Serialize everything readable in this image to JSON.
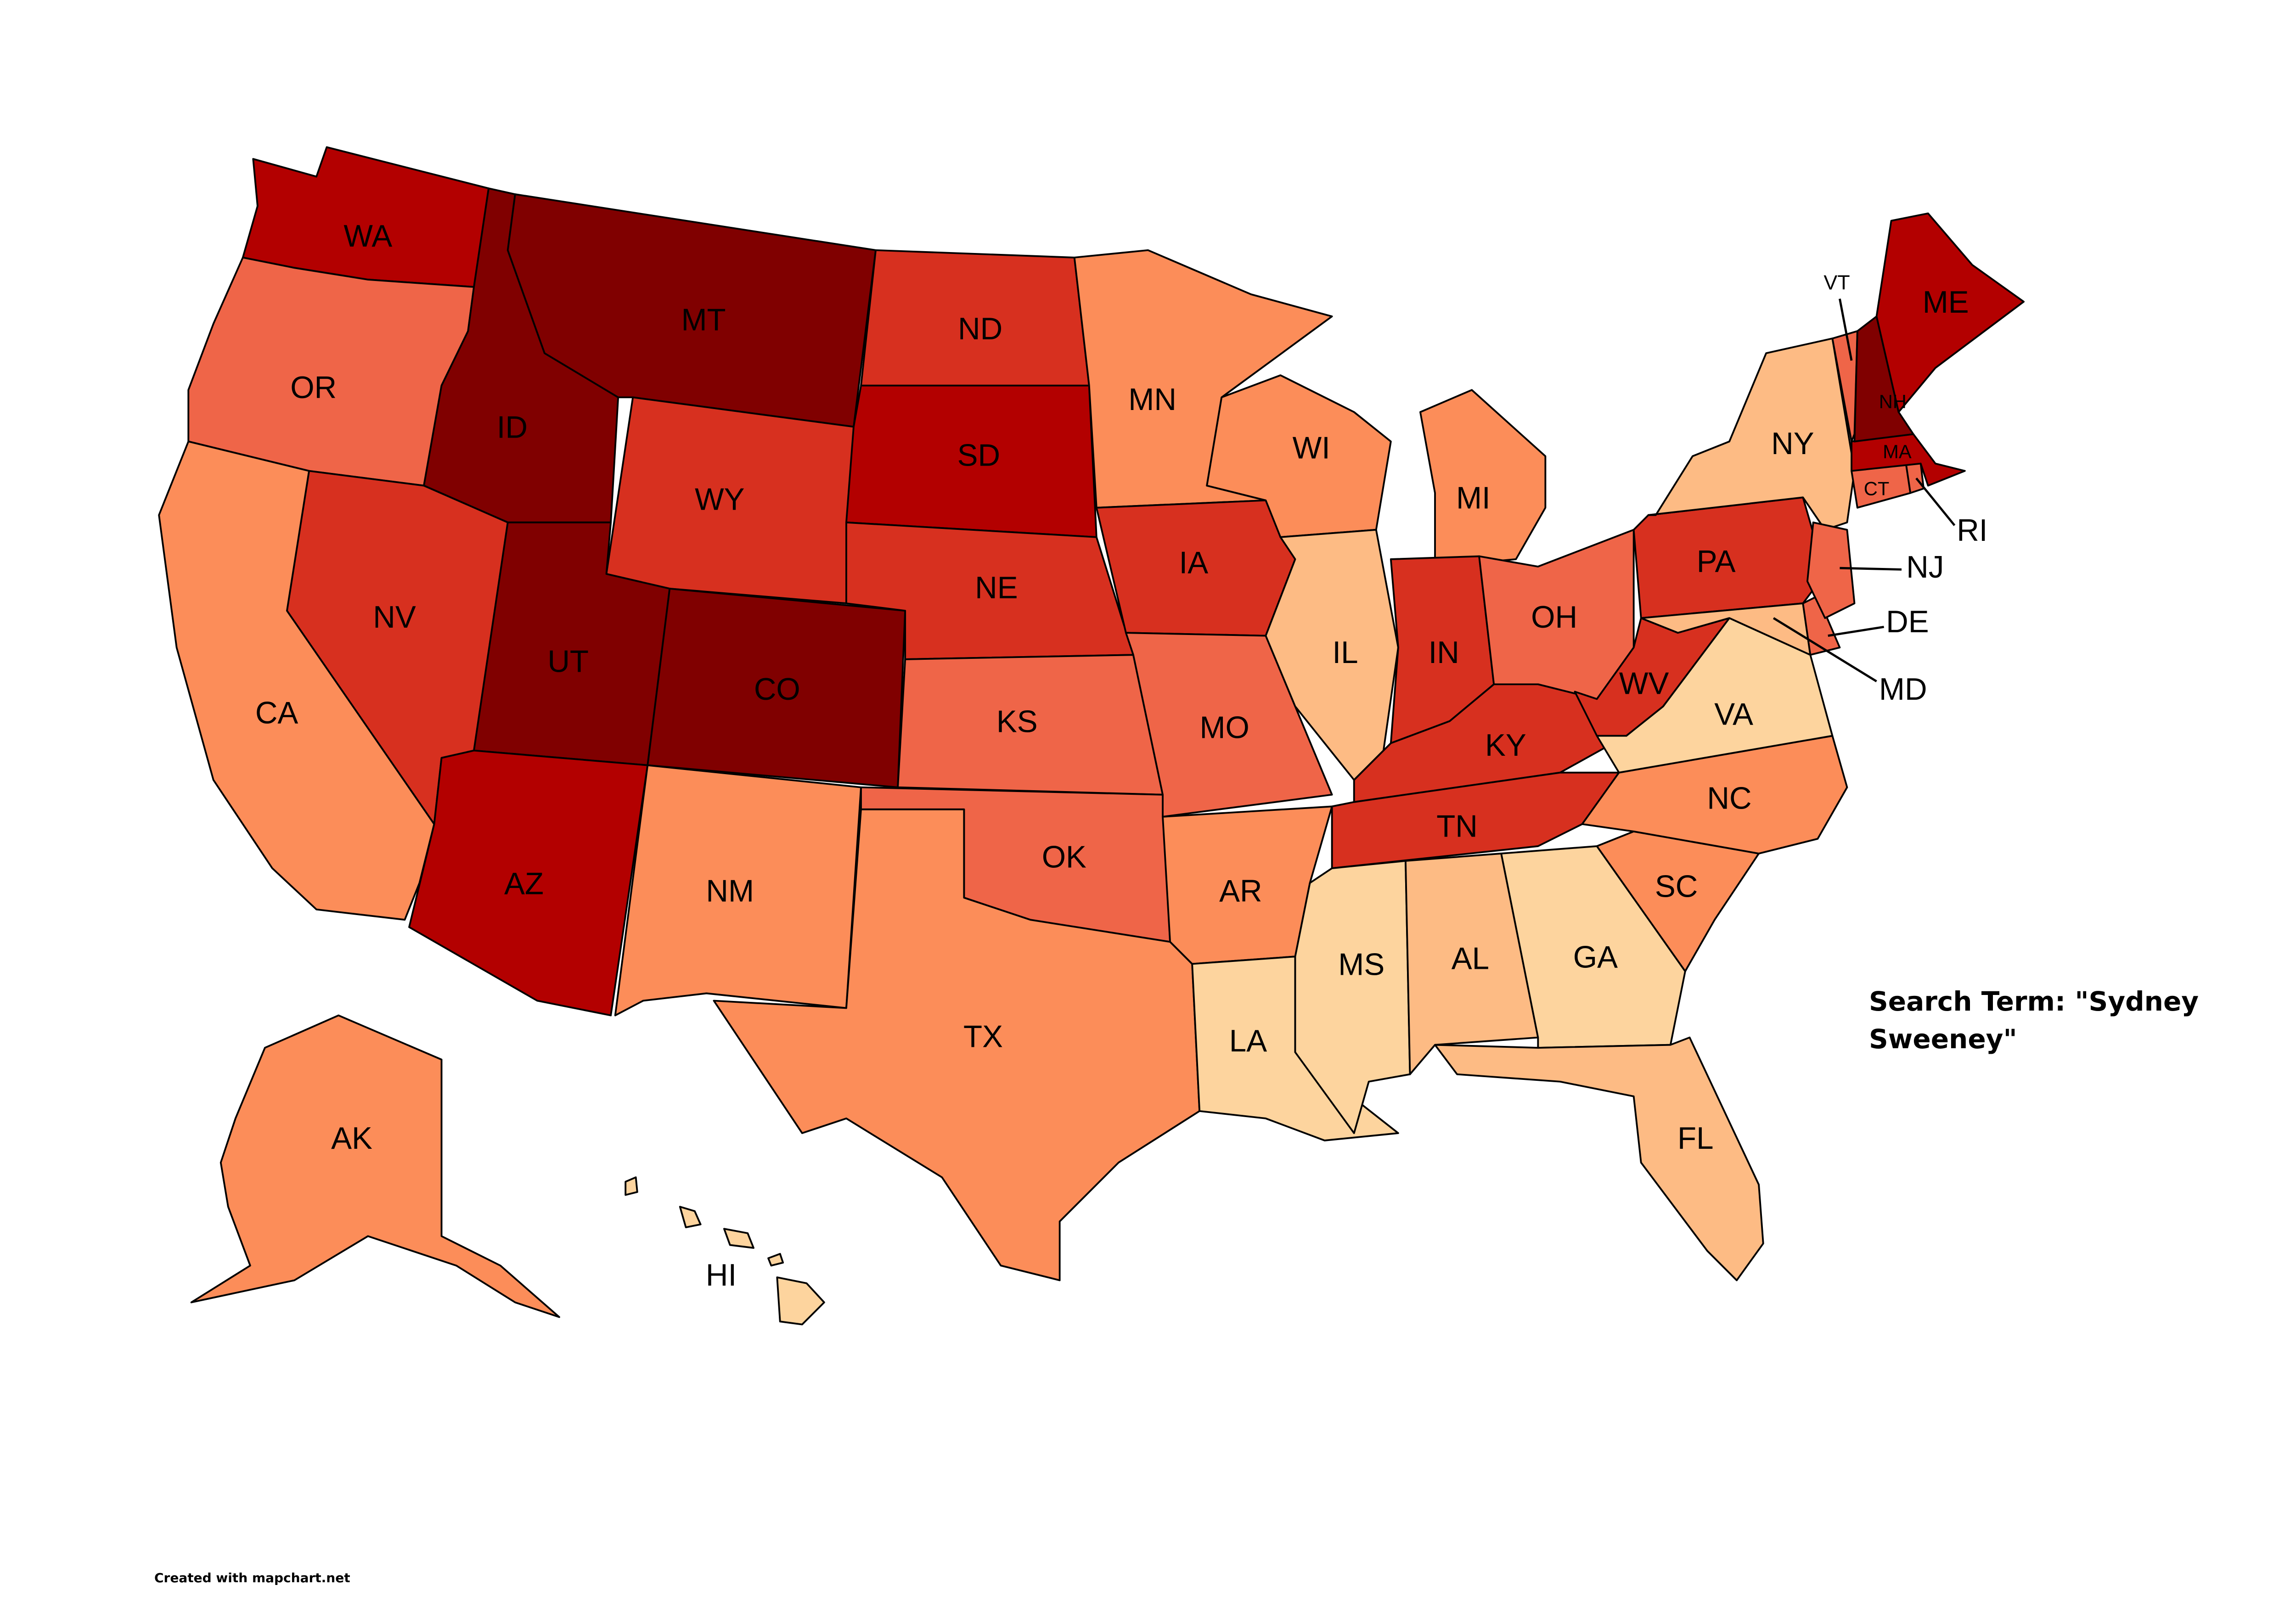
{
  "title": "Search Term: \"Sydney Sweeney\"",
  "credit": "Created with mapchart.net",
  "states": [
    {
      "label": "WA",
      "color": "#b30000"
    },
    {
      "label": "OR",
      "color": "#ef6548"
    },
    {
      "label": "CA",
      "color": "#fc8d59"
    },
    {
      "label": "ID",
      "color": "#800000"
    },
    {
      "label": "NV",
      "color": "#d7301f"
    },
    {
      "label": "MT",
      "color": "#800000"
    },
    {
      "label": "WY",
      "color": "#d7301f"
    },
    {
      "label": "UT",
      "color": "#800000"
    },
    {
      "label": "CO",
      "color": "#800000"
    },
    {
      "label": "AZ",
      "color": "#b30000"
    },
    {
      "label": "NM",
      "color": "#fc8d59"
    },
    {
      "label": "ND",
      "color": "#d7301f"
    },
    {
      "label": "SD",
      "color": "#b30000"
    },
    {
      "label": "NE",
      "color": "#d7301f"
    },
    {
      "label": "KS",
      "color": "#ef6548"
    },
    {
      "label": "OK",
      "color": "#ef6548"
    },
    {
      "label": "TX",
      "color": "#fc8d59"
    },
    {
      "label": "MN",
      "color": "#fc8d59"
    },
    {
      "label": "IA",
      "color": "#d7301f"
    },
    {
      "label": "MO",
      "color": "#ef6548"
    },
    {
      "label": "AR",
      "color": "#fc8d59"
    },
    {
      "label": "LA",
      "color": "#fdd49e"
    },
    {
      "label": "WI",
      "color": "#fc8d59"
    },
    {
      "label": "IL",
      "color": "#fdbb84"
    },
    {
      "label": "MI",
      "color": "#fc8d59"
    },
    {
      "label": "IN",
      "color": "#d7301f"
    },
    {
      "label": "OH",
      "color": "#ef6548"
    },
    {
      "label": "KY",
      "color": "#d7301f"
    },
    {
      "label": "TN",
      "color": "#d7301f"
    },
    {
      "label": "MS",
      "color": "#fdd49e"
    },
    {
      "label": "AL",
      "color": "#fdbb84"
    },
    {
      "label": "GA",
      "color": "#fdd49e"
    },
    {
      "label": "FL",
      "color": "#fdbb84"
    },
    {
      "label": "SC",
      "color": "#fc8d59"
    },
    {
      "label": "NC",
      "color": "#fc8d59"
    },
    {
      "label": "VA",
      "color": "#fdd49e"
    },
    {
      "label": "WV",
      "color": "#d7301f"
    },
    {
      "label": "PA",
      "color": "#d7301f"
    },
    {
      "label": "NY",
      "color": "#fdbb84"
    },
    {
      "label": "MD",
      "color": "#fdbb84"
    },
    {
      "label": "DE",
      "color": "#ef6548"
    },
    {
      "label": "NJ",
      "color": "#ef6548"
    },
    {
      "label": "CT",
      "color": "#ef6548"
    },
    {
      "label": "RI",
      "color": "#ef6548"
    },
    {
      "label": "MA",
      "color": "#b30000"
    },
    {
      "label": "VT",
      "color": "#ef6548"
    },
    {
      "label": "NH",
      "color": "#800000"
    },
    {
      "label": "ME",
      "color": "#b30000"
    },
    {
      "label": "AK",
      "color": "#fc8d59"
    },
    {
      "label": "HI",
      "color": "#fdd49e"
    }
  ]
}
